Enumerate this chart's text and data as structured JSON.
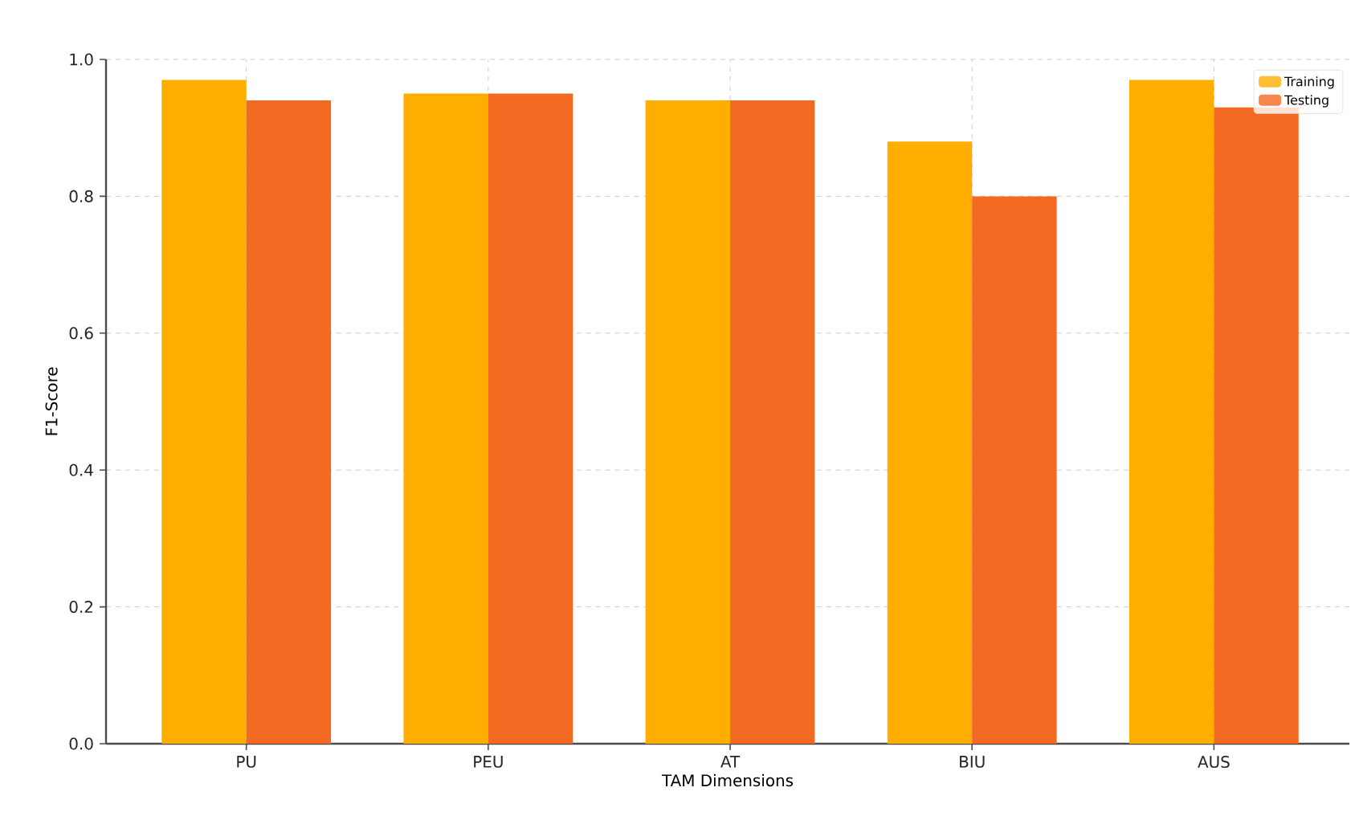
{
  "chart_data": {
    "type": "bar",
    "xlabel": "TAM Dimensions",
    "ylabel": "F1-Score",
    "categories": [
      "PU",
      "PEU",
      "AT",
      "BIU",
      "AUS"
    ],
    "series": [
      {
        "name": "Training",
        "color": "#ffae00",
        "values": [
          0.97,
          0.95,
          0.94,
          0.88,
          0.97
        ]
      },
      {
        "name": "Testing",
        "color": "#f26922",
        "values": [
          0.94,
          0.95,
          0.94,
          0.8,
          0.93
        ]
      }
    ],
    "ylim": [
      0,
      1.0
    ],
    "yticks": [
      {
        "value": 0,
        "label": "0.0"
      },
      {
        "value": 0.2,
        "label": "0.2"
      },
      {
        "value": 0.4,
        "label": "0.4"
      },
      {
        "value": 0.6,
        "label": "0.6"
      },
      {
        "value": 0.8,
        "label": "0.8"
      },
      {
        "value": 1.0,
        "label": "1.0"
      }
    ],
    "grid": true,
    "legend": "top right"
  }
}
